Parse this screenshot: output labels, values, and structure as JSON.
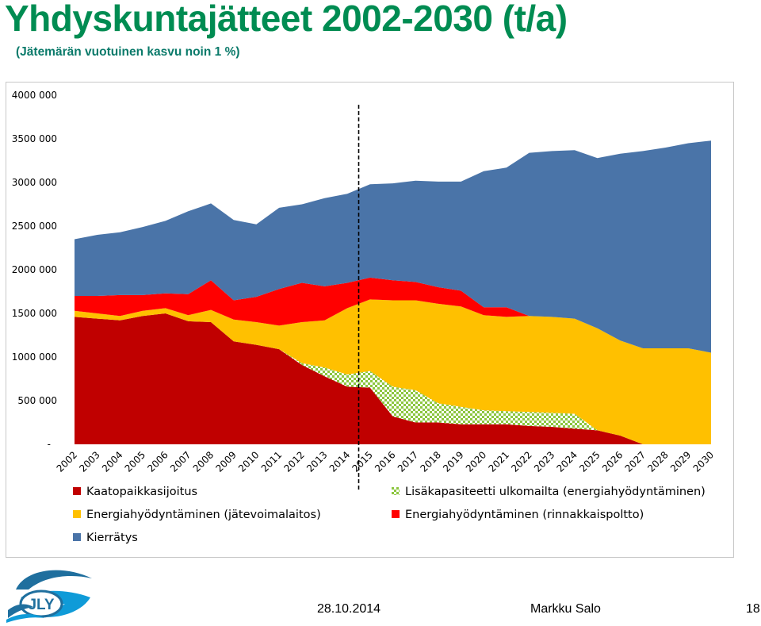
{
  "slide": {
    "title": "Yhdyskuntajätteet 2002-2030 (t/a)",
    "subtitle": "(Jätemärän vuotuinen kasvu noin 1 %)",
    "date": "28.10.2014",
    "author": "Markku Salo",
    "page_number": "18",
    "logo_text": "JLY",
    "title_color": "#008c52"
  },
  "chart_data": {
    "type": "area",
    "stacked": true,
    "x": [
      "2002",
      "2003",
      "2004",
      "2005",
      "2006",
      "2007",
      "2008",
      "2009",
      "2010",
      "2011",
      "2012",
      "2013",
      "2014",
      "2015",
      "2016",
      "2017",
      "2018",
      "2019",
      "2020",
      "2021",
      "2022",
      "2023",
      "2024",
      "2025",
      "2026",
      "2027",
      "2028",
      "2029",
      "2030"
    ],
    "y_ticks": [
      {
        "value": 0,
        "label": "-"
      },
      {
        "value": 500000,
        "label": "500 000"
      },
      {
        "value": 1000000,
        "label": "1000 000"
      },
      {
        "value": 1500000,
        "label": "1500 000"
      },
      {
        "value": 2000000,
        "label": "2000 000"
      },
      {
        "value": 2500000,
        "label": "2500 000"
      },
      {
        "value": 3000000,
        "label": "3000 000"
      },
      {
        "value": 3500000,
        "label": "3500 000"
      },
      {
        "value": 4000000,
        "label": "4000 000"
      }
    ],
    "ylim": [
      0,
      4000000
    ],
    "grid": false,
    "divider_after": "2014",
    "legend_position": "bottom",
    "series": [
      {
        "name": "Kaatopaikkasijoitus",
        "color": "#c00000",
        "pattern": false,
        "values": [
          1460000,
          1440000,
          1420000,
          1470000,
          1500000,
          1410000,
          1400000,
          1180000,
          1140000,
          1090000,
          910000,
          780000,
          660000,
          650000,
          320000,
          250000,
          250000,
          230000,
          230000,
          230000,
          210000,
          200000,
          180000,
          160000,
          100000,
          0,
          0,
          0,
          0
        ]
      },
      {
        "name": "Lisäkapasiteetti ulkomailta (energiahyödyntäminen)",
        "color": "#8cc63f",
        "pattern": true,
        "values": [
          0,
          0,
          0,
          0,
          0,
          0,
          0,
          0,
          0,
          0,
          20000,
          100000,
          140000,
          190000,
          340000,
          370000,
          220000,
          200000,
          160000,
          150000,
          160000,
          160000,
          170000,
          0,
          0,
          0,
          0,
          0,
          0
        ]
      },
      {
        "name": "Energiahyödyntäminen (jätevoimalaitos)",
        "color": "#ffc000",
        "pattern": false,
        "values": [
          70000,
          60000,
          50000,
          60000,
          60000,
          70000,
          140000,
          250000,
          260000,
          270000,
          470000,
          540000,
          760000,
          820000,
          990000,
          1030000,
          1140000,
          1150000,
          1090000,
          1080000,
          1100000,
          1100000,
          1090000,
          1170000,
          1090000,
          1100000,
          1100000,
          1100000,
          1050000
        ]
      },
      {
        "name": "Energiahyödyntäminen (rinnakkaispoltto)",
        "color": "#ff0000",
        "pattern": false,
        "values": [
          170000,
          200000,
          240000,
          180000,
          170000,
          240000,
          340000,
          220000,
          290000,
          420000,
          450000,
          390000,
          290000,
          250000,
          230000,
          210000,
          190000,
          180000,
          90000,
          110000,
          0,
          0,
          0,
          0,
          0,
          0,
          0,
          0,
          0
        ]
      },
      {
        "name": "Kierrätys",
        "color": "#4a74a8",
        "pattern": false,
        "values": [
          650000,
          700000,
          720000,
          780000,
          830000,
          950000,
          880000,
          920000,
          830000,
          930000,
          900000,
          1010000,
          1020000,
          1070000,
          1110000,
          1160000,
          1210000,
          1250000,
          1560000,
          1600000,
          1870000,
          1900000,
          1930000,
          1950000,
          2140000,
          2260000,
          2300000,
          2350000,
          2430000
        ]
      }
    ],
    "legend_rows": [
      [
        "Kaatopaikkasijoitus",
        "Lisäkapasiteetti ulkomailta (energiahyödyntäminen)"
      ],
      [
        "Energiahyödyntäminen (jätevoimalaitos)",
        "Energiahyödyntäminen (rinnakkaispoltto)"
      ],
      [
        "Kierrätys"
      ]
    ]
  }
}
